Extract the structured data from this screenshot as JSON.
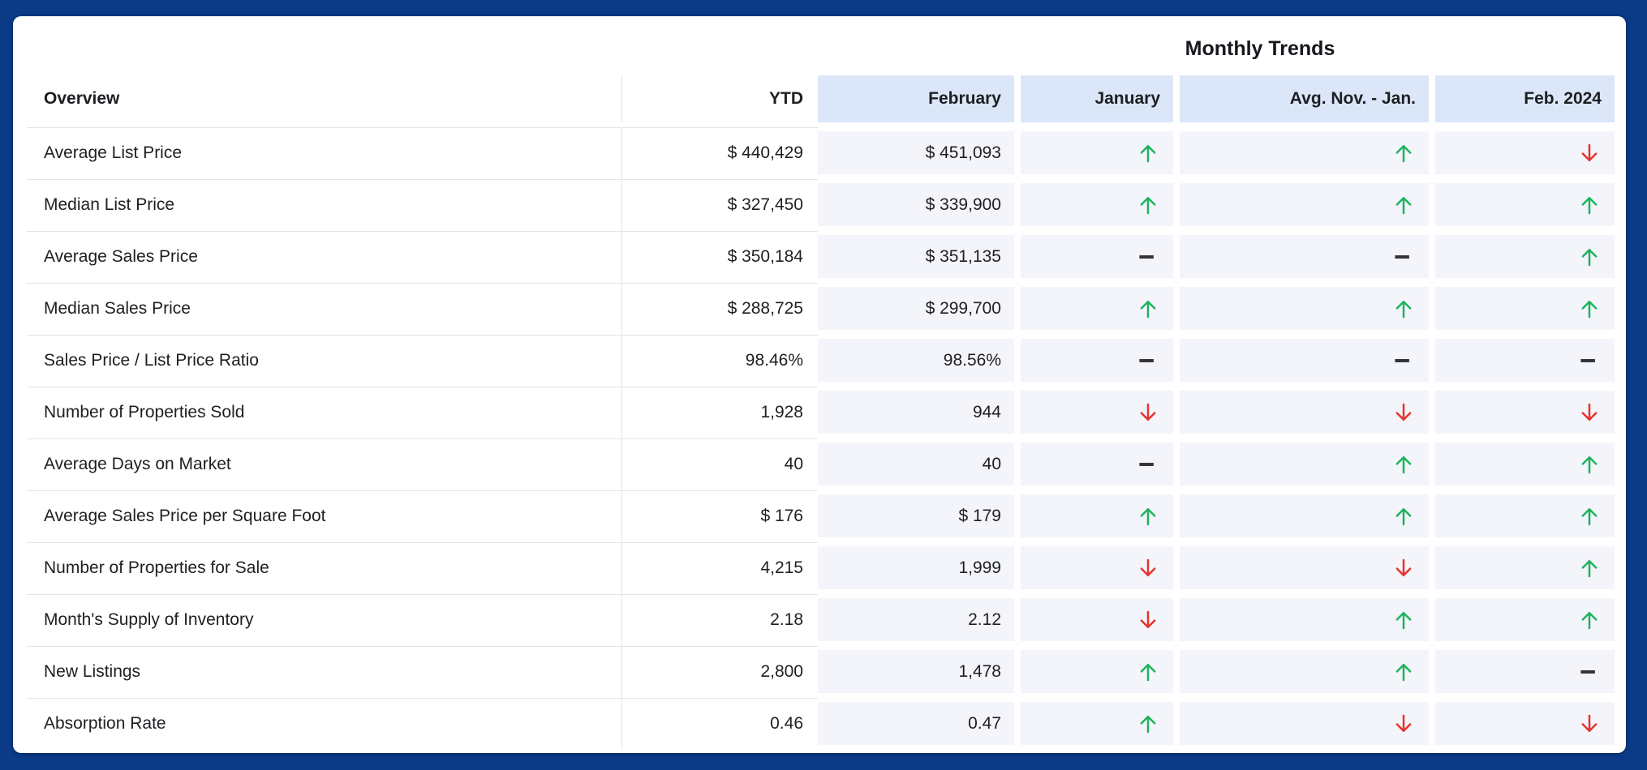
{
  "title": "Monthly Trends",
  "table": {
    "label_header": "Overview",
    "ytd_header": "YTD",
    "trend_headers": [
      "February",
      "January",
      "Avg. Nov. - Jan.",
      "Feb. 2024"
    ],
    "rows": [
      {
        "label": "Average List Price",
        "ytd": "$ 440,429",
        "february": "$ 451,093",
        "january": "up",
        "avg_nov_jan": "up",
        "feb_2024": "down"
      },
      {
        "label": "Median List Price",
        "ytd": "$ 327,450",
        "february": "$ 339,900",
        "january": "up",
        "avg_nov_jan": "up",
        "feb_2024": "up"
      },
      {
        "label": "Average Sales Price",
        "ytd": "$ 350,184",
        "february": "$ 351,135",
        "january": "flat",
        "avg_nov_jan": "flat",
        "feb_2024": "up"
      },
      {
        "label": "Median Sales Price",
        "ytd": "$ 288,725",
        "february": "$ 299,700",
        "january": "up",
        "avg_nov_jan": "up",
        "feb_2024": "up"
      },
      {
        "label": "Sales Price / List Price Ratio",
        "ytd": "98.46%",
        "february": "98.56%",
        "january": "flat",
        "avg_nov_jan": "flat",
        "feb_2024": "flat"
      },
      {
        "label": "Number of Properties Sold",
        "ytd": "1,928",
        "february": "944",
        "january": "down",
        "avg_nov_jan": "down",
        "feb_2024": "down"
      },
      {
        "label": "Average Days on Market",
        "ytd": "40",
        "february": "40",
        "january": "flat",
        "avg_nov_jan": "up",
        "feb_2024": "up"
      },
      {
        "label": "Average Sales Price per Square Foot",
        "ytd": "$ 176",
        "february": "$ 179",
        "january": "up",
        "avg_nov_jan": "up",
        "feb_2024": "up"
      },
      {
        "label": "Number of Properties for Sale",
        "ytd": "4,215",
        "february": "1,999",
        "january": "down",
        "avg_nov_jan": "down",
        "feb_2024": "up"
      },
      {
        "label": "Month's Supply of Inventory",
        "ytd": "2.18",
        "february": "2.12",
        "january": "down",
        "avg_nov_jan": "up",
        "feb_2024": "up"
      },
      {
        "label": "New Listings",
        "ytd": "2,800",
        "february": "1,478",
        "january": "up",
        "avg_nov_jan": "up",
        "feb_2024": "flat"
      },
      {
        "label": "Absorption Rate",
        "ytd": "0.46",
        "february": "0.47",
        "january": "up",
        "avg_nov_jan": "down",
        "feb_2024": "down"
      }
    ]
  },
  "icons": {
    "up": "trend-up-icon",
    "down": "trend-down-icon",
    "flat": "trend-flat-icon"
  },
  "colors": {
    "page_bg": "#0b3a86",
    "card_bg": "#ffffff",
    "header_cell_bg": "#dbe7f8",
    "trend_cell_bg": "#f4f4fb",
    "divider": "#e4e4e7",
    "text": "#1d1f23",
    "trend_up": "#1db45c",
    "trend_down": "#e5332c",
    "trend_flat": "#33353a"
  }
}
